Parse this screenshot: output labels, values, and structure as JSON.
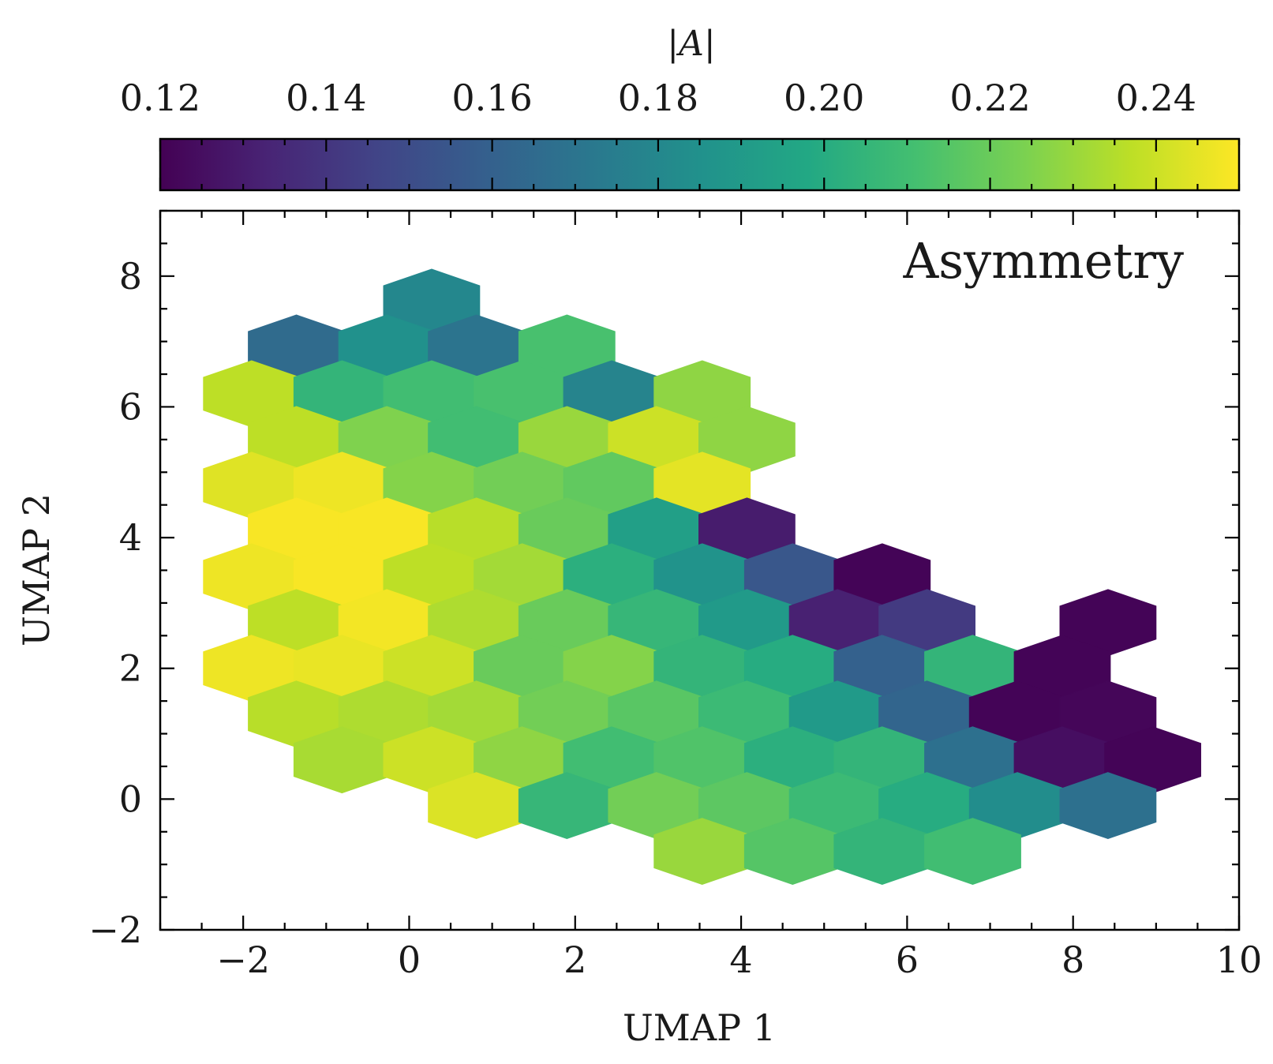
{
  "chart_data": {
    "type": "hexbin",
    "panel_label": "Asymmetry",
    "xlabel": "UMAP 1",
    "ylabel": "UMAP 2",
    "xlim": [
      -3,
      10
    ],
    "ylim": [
      -2,
      9
    ],
    "xticks": [
      "−2",
      "0",
      "2",
      "4",
      "6",
      "8",
      "10"
    ],
    "xtick_values": [
      -2,
      0,
      2,
      4,
      6,
      8,
      10
    ],
    "yticks": [
      "−2",
      "0",
      "2",
      "4",
      "6",
      "8"
    ],
    "ytick_values": [
      -2,
      0,
      2,
      4,
      6,
      8
    ],
    "colorbar": {
      "label": "|A|",
      "colormap": "viridis",
      "range": [
        0.12,
        0.25
      ],
      "ticks": [
        "0.12",
        "0.14",
        "0.16",
        "0.18",
        "0.20",
        "0.22",
        "0.24"
      ],
      "tick_values": [
        0.12,
        0.14,
        0.16,
        0.18,
        0.2,
        0.22,
        0.24
      ],
      "placement": "top"
    },
    "cells": [
      {
        "x": 0.27,
        "y": 7.6,
        "value": 0.18
      },
      {
        "x": -1.36,
        "y": 6.9,
        "value": 0.165
      },
      {
        "x": -0.27,
        "y": 6.9,
        "value": 0.185
      },
      {
        "x": 0.81,
        "y": 6.9,
        "value": 0.17
      },
      {
        "x": 1.9,
        "y": 6.9,
        "value": 0.212
      },
      {
        "x": -1.9,
        "y": 6.2,
        "value": 0.237
      },
      {
        "x": -0.81,
        "y": 6.2,
        "value": 0.205
      },
      {
        "x": 0.27,
        "y": 6.2,
        "value": 0.21
      },
      {
        "x": 1.36,
        "y": 6.2,
        "value": 0.212
      },
      {
        "x": 2.44,
        "y": 6.2,
        "value": 0.178
      },
      {
        "x": 3.53,
        "y": 6.2,
        "value": 0.228
      },
      {
        "x": -1.36,
        "y": 5.5,
        "value": 0.237
      },
      {
        "x": -0.27,
        "y": 5.5,
        "value": 0.225
      },
      {
        "x": 0.81,
        "y": 5.5,
        "value": 0.21
      },
      {
        "x": 1.9,
        "y": 5.5,
        "value": 0.23
      },
      {
        "x": 2.98,
        "y": 5.5,
        "value": 0.24
      },
      {
        "x": 4.07,
        "y": 5.5,
        "value": 0.228
      },
      {
        "x": -1.9,
        "y": 4.8,
        "value": 0.244
      },
      {
        "x": -0.81,
        "y": 4.8,
        "value": 0.247
      },
      {
        "x": 0.27,
        "y": 4.8,
        "value": 0.226
      },
      {
        "x": 1.36,
        "y": 4.8,
        "value": 0.222
      },
      {
        "x": 2.44,
        "y": 4.8,
        "value": 0.218
      },
      {
        "x": 3.53,
        "y": 4.8,
        "value": 0.245
      },
      {
        "x": -1.36,
        "y": 4.1,
        "value": 0.249
      },
      {
        "x": -0.27,
        "y": 4.1,
        "value": 0.249
      },
      {
        "x": 0.81,
        "y": 4.1,
        "value": 0.236
      },
      {
        "x": 1.9,
        "y": 4.1,
        "value": 0.22
      },
      {
        "x": 2.98,
        "y": 4.1,
        "value": 0.193
      },
      {
        "x": 4.07,
        "y": 4.1,
        "value": 0.13
      },
      {
        "x": -1.9,
        "y": 3.4,
        "value": 0.247
      },
      {
        "x": -0.81,
        "y": 3.4,
        "value": 0.249
      },
      {
        "x": 0.27,
        "y": 3.4,
        "value": 0.237
      },
      {
        "x": 1.36,
        "y": 3.4,
        "value": 0.232
      },
      {
        "x": 2.44,
        "y": 3.4,
        "value": 0.202
      },
      {
        "x": 3.53,
        "y": 3.4,
        "value": 0.186
      },
      {
        "x": 4.62,
        "y": 3.4,
        "value": 0.155
      },
      {
        "x": 5.7,
        "y": 3.4,
        "value": 0.121
      },
      {
        "x": -1.36,
        "y": 2.7,
        "value": 0.237
      },
      {
        "x": -0.27,
        "y": 2.7,
        "value": 0.248
      },
      {
        "x": 0.81,
        "y": 2.7,
        "value": 0.234
      },
      {
        "x": 1.9,
        "y": 2.7,
        "value": 0.22
      },
      {
        "x": 2.98,
        "y": 2.7,
        "value": 0.206
      },
      {
        "x": 4.07,
        "y": 2.7,
        "value": 0.19
      },
      {
        "x": 5.16,
        "y": 2.7,
        "value": 0.132
      },
      {
        "x": 6.24,
        "y": 2.7,
        "value": 0.142
      },
      {
        "x": 8.42,
        "y": 2.7,
        "value": 0.121
      },
      {
        "x": -1.9,
        "y": 2.0,
        "value": 0.247
      },
      {
        "x": -0.81,
        "y": 2.0,
        "value": 0.246
      },
      {
        "x": 0.27,
        "y": 2.0,
        "value": 0.24
      },
      {
        "x": 1.36,
        "y": 2.0,
        "value": 0.22
      },
      {
        "x": 2.44,
        "y": 2.0,
        "value": 0.226
      },
      {
        "x": 3.53,
        "y": 2.0,
        "value": 0.205
      },
      {
        "x": 4.62,
        "y": 2.0,
        "value": 0.2
      },
      {
        "x": 5.7,
        "y": 2.0,
        "value": 0.16
      },
      {
        "x": 6.79,
        "y": 2.0,
        "value": 0.205
      },
      {
        "x": 7.87,
        "y": 2.0,
        "value": 0.121
      },
      {
        "x": -1.36,
        "y": 1.3,
        "value": 0.236
      },
      {
        "x": -0.27,
        "y": 1.3,
        "value": 0.234
      },
      {
        "x": 0.81,
        "y": 1.3,
        "value": 0.232
      },
      {
        "x": 1.9,
        "y": 1.3,
        "value": 0.222
      },
      {
        "x": 2.98,
        "y": 1.3,
        "value": 0.216
      },
      {
        "x": 4.07,
        "y": 1.3,
        "value": 0.208
      },
      {
        "x": 5.16,
        "y": 1.3,
        "value": 0.19
      },
      {
        "x": 6.24,
        "y": 1.3,
        "value": 0.162
      },
      {
        "x": 7.33,
        "y": 1.3,
        "value": 0.121
      },
      {
        "x": 8.42,
        "y": 1.3,
        "value": 0.122
      },
      {
        "x": -0.81,
        "y": 0.6,
        "value": 0.233
      },
      {
        "x": 0.27,
        "y": 0.6,
        "value": 0.24
      },
      {
        "x": 1.36,
        "y": 0.6,
        "value": 0.228
      },
      {
        "x": 2.44,
        "y": 0.6,
        "value": 0.21
      },
      {
        "x": 3.53,
        "y": 0.6,
        "value": 0.214
      },
      {
        "x": 4.62,
        "y": 0.6,
        "value": 0.202
      },
      {
        "x": 5.7,
        "y": 0.6,
        "value": 0.205
      },
      {
        "x": 6.79,
        "y": 0.6,
        "value": 0.168
      },
      {
        "x": 7.87,
        "y": 0.6,
        "value": 0.125
      },
      {
        "x": 8.96,
        "y": 0.6,
        "value": 0.121
      },
      {
        "x": 0.81,
        "y": -0.1,
        "value": 0.243
      },
      {
        "x": 1.9,
        "y": -0.1,
        "value": 0.206
      },
      {
        "x": 2.98,
        "y": -0.1,
        "value": 0.222
      },
      {
        "x": 4.07,
        "y": -0.1,
        "value": 0.217
      },
      {
        "x": 5.16,
        "y": -0.1,
        "value": 0.208
      },
      {
        "x": 6.24,
        "y": -0.1,
        "value": 0.2
      },
      {
        "x": 7.33,
        "y": -0.1,
        "value": 0.183
      },
      {
        "x": 8.42,
        "y": -0.1,
        "value": 0.168
      },
      {
        "x": 3.53,
        "y": -0.8,
        "value": 0.23
      },
      {
        "x": 4.62,
        "y": -0.8,
        "value": 0.215
      },
      {
        "x": 5.7,
        "y": -0.8,
        "value": 0.205
      },
      {
        "x": 6.79,
        "y": -0.8,
        "value": 0.21
      }
    ]
  }
}
